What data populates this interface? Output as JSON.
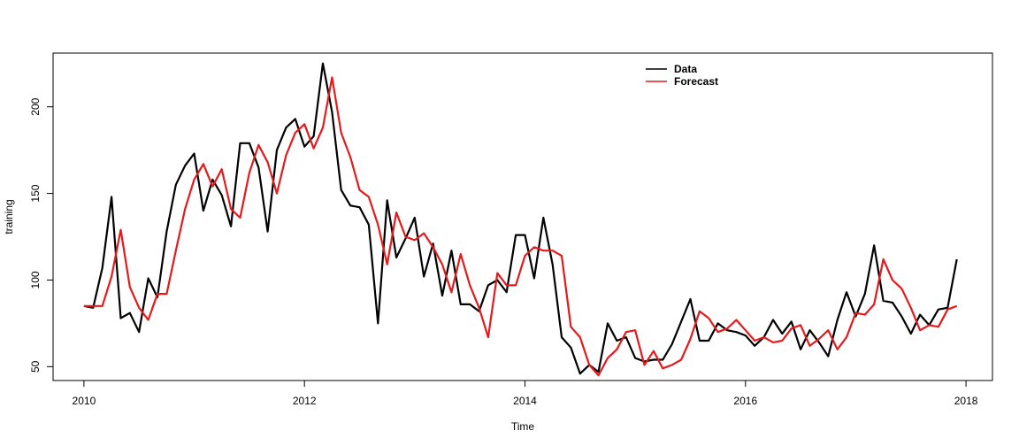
{
  "chart_data": {
    "type": "line",
    "title": "",
    "xlabel": "Time",
    "ylabel": "training",
    "xlim": [
      2009.72,
      2018.24
    ],
    "ylim": [
      42,
      231
    ],
    "x_ticks": [
      2010,
      2012,
      2014,
      2016,
      2018
    ],
    "y_ticks": [
      50,
      100,
      150,
      200
    ],
    "grid": false,
    "legend_position": "top",
    "x_start": 2010,
    "x_step": 0.0833333,
    "series": [
      {
        "name": "Data",
        "color": "#000000",
        "values": [
          85,
          84,
          107,
          148,
          78,
          81,
          70,
          101,
          90,
          128,
          155,
          166,
          173,
          140,
          158,
          149,
          131,
          179,
          179,
          165,
          128,
          175,
          188,
          193,
          177,
          183,
          225,
          197,
          152,
          143,
          142,
          132,
          75,
          146,
          113,
          124,
          136,
          102,
          121,
          91,
          117,
          86,
          86,
          82,
          97,
          100,
          93,
          126,
          126,
          101,
          136,
          109,
          67,
          61,
          46,
          51,
          47,
          75,
          65,
          67,
          55,
          53,
          54,
          54,
          63,
          76,
          89,
          65,
          65,
          75,
          71,
          70,
          68,
          62,
          67,
          77,
          69,
          76,
          60,
          71,
          64,
          56,
          77,
          93,
          79,
          92,
          120,
          88,
          87,
          79,
          69,
          80,
          74,
          83,
          84,
          112
        ]
      },
      {
        "name": "Forecast",
        "color": "#e41a1c",
        "values": [
          85,
          85,
          85,
          102,
          129,
          96,
          84,
          77,
          92,
          92,
          117,
          141,
          158,
          167,
          154,
          164,
          141,
          136,
          162,
          178,
          168,
          150,
          172,
          185,
          190,
          176,
          188,
          217,
          185,
          171,
          152,
          148,
          132,
          109,
          139,
          125,
          123,
          127,
          119,
          109,
          93,
          115,
          97,
          84,
          67,
          104,
          97,
          97,
          114,
          119,
          117,
          117,
          114,
          73,
          67,
          51,
          45,
          55,
          60,
          70,
          71,
          51,
          59,
          49,
          51,
          54,
          66,
          82,
          78,
          70,
          72,
          77,
          71,
          65,
          67,
          64,
          65,
          72,
          74,
          62,
          66,
          71,
          60,
          67,
          81,
          80,
          86,
          112,
          100,
          95,
          84,
          71,
          74,
          73,
          83,
          85
        ]
      }
    ]
  }
}
